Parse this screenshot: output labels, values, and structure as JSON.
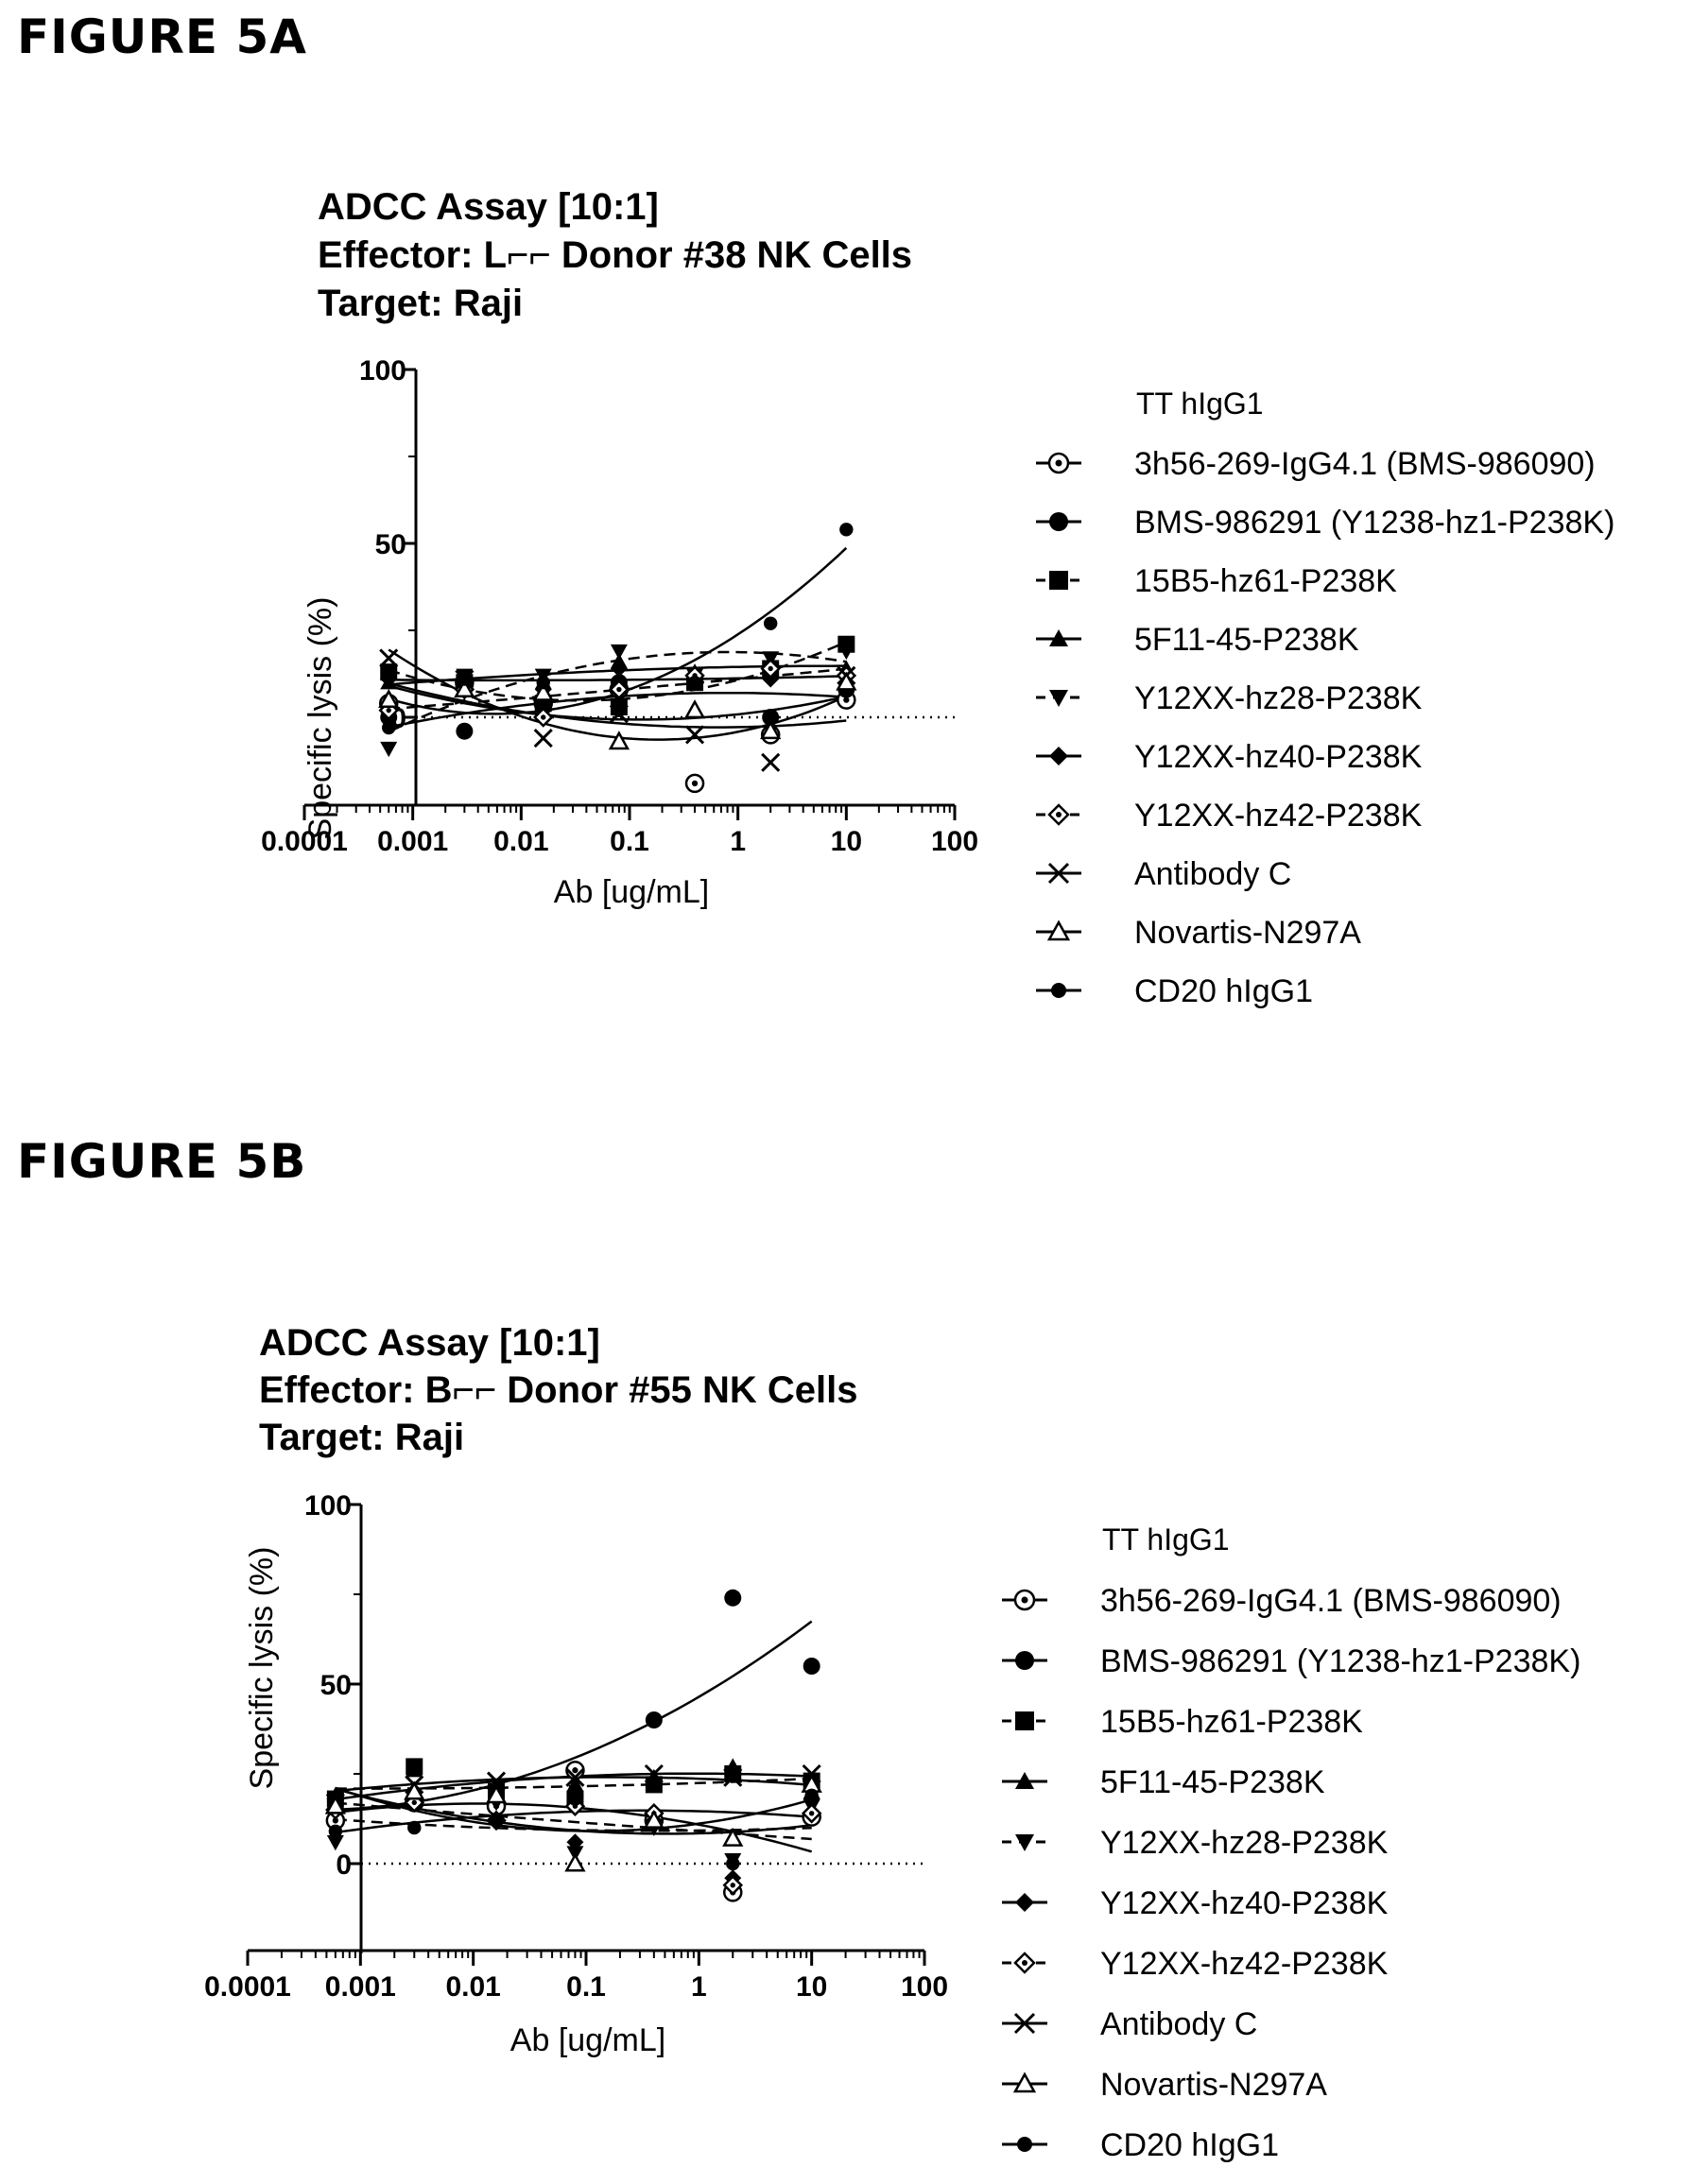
{
  "figures": [
    {
      "label": "FIGURE 5A",
      "title_lines": [
        "ADCC Assay [10:1]",
        "Effector: L⌐⌐ Donor #38 NK Cells",
        "Target: Raji"
      ],
      "legend_header": "TT hIgG1",
      "x_ticks": [
        "0.0001",
        "0.001",
        "0.01",
        "0.1",
        "1",
        "10",
        "100"
      ],
      "y_ticks": [
        "100",
        "50",
        "0"
      ],
      "ylabel": "Specific lysis (%)",
      "xlabel": "Ab [ug/mL]",
      "legend_texts": [
        "3h56-269-IgG4.1 (BMS-986090)",
        "BMS-986291 (Y1238-hz1-P238K)",
        "15B5-hz61-P238K",
        "5F11-45-P238K",
        "Y12XX-hz28-P238K",
        "Y12XX-hz40-P238K",
        "Y12XX-hz42-P238K",
        "Antibody C",
        "Novartis-N297A",
        "CD20 hIgG1"
      ]
    },
    {
      "label": "FIGURE 5B",
      "title_lines": [
        "ADCC Assay [10:1]",
        "Effector: B⌐⌐ Donor #55 NK Cells",
        "Target: Raji"
      ],
      "legend_header": "TT hIgG1",
      "x_ticks": [
        "0.0001",
        "0.001",
        "0.01",
        "0.1",
        "1",
        "10",
        "100"
      ],
      "y_ticks": [
        "100",
        "50",
        "0"
      ],
      "ylabel": "Specific lysis (%)",
      "xlabel": "Ab [ug/mL]",
      "legend_texts": [
        "3h56-269-IgG4.1 (BMS-986090)",
        "BMS-986291 (Y1238-hz1-P238K)",
        "15B5-hz61-P238K",
        "5F11-45-P238K",
        "Y12XX-hz28-P238K",
        "Y12XX-hz40-P238K",
        "Y12XX-hz42-P238K",
        "Antibody C",
        "Novartis-N297A",
        "CD20 hIgG1"
      ]
    }
  ],
  "chart_data": [
    {
      "type": "scatter",
      "title": "ADCC Assay [10:1] Effector: L⌐⌐ Donor #38 NK Cells Target: Raji",
      "xlabel": "Ab [ug/mL]",
      "ylabel": "Specific lysis (%)",
      "x_scale": "log",
      "xlim": [
        0.0001,
        100
      ],
      "ylim": [
        -25,
        100
      ],
      "grid": false,
      "legend_position": "right",
      "reference_line_y": 0,
      "x": [
        0.0006,
        0.003,
        0.016,
        0.08,
        0.4,
        2,
        10
      ],
      "series": [
        {
          "name": "3h56-269-IgG4.1 (BMS-986090)",
          "marker": "open-circle-dot",
          "values": [
            4,
            10,
            4,
            8,
            -19,
            -5,
            5
          ]
        },
        {
          "name": "BMS-986291 (Y1238-hz1-P238K)",
          "marker": "filled-circle",
          "values": [
            0,
            -4,
            3,
            10,
            11,
            0,
            8
          ]
        },
        {
          "name": "15B5-hz61-P238K",
          "marker": "filled-square",
          "values": [
            13,
            10,
            4,
            3,
            10,
            14,
            21
          ]
        },
        {
          "name": "5F11-45-P238K",
          "marker": "filled-triangle-up",
          "values": [
            10,
            11,
            10,
            16,
            13,
            16,
            14
          ]
        },
        {
          "name": "Y12XX-hz28-P238K",
          "marker": "filled-triangle-down",
          "values": [
            -9,
            12,
            12,
            19,
            12,
            17,
            19
          ]
        },
        {
          "name": "Y12XX-hz40-P238K",
          "marker": "filled-diamond",
          "values": [
            11,
            11,
            8,
            14,
            10,
            11,
            12
          ]
        },
        {
          "name": "Y12XX-hz42-P238K",
          "marker": "open-diamond-dot",
          "values": [
            2,
            8,
            0,
            8,
            12,
            14,
            12
          ]
        },
        {
          "name": "Antibody C",
          "marker": "x",
          "values": [
            17,
            11,
            -6,
            1,
            -5,
            -13,
            12
          ]
        },
        {
          "name": "Novartis-N297A",
          "marker": "open-triangle",
          "values": [
            5,
            8,
            7,
            -7,
            2,
            -4,
            10
          ]
        },
        {
          "name": "CD20 hIgG1",
          "marker": "filled-circle-small",
          "values": [
            -3,
            11,
            10,
            2,
            10,
            27,
            54
          ]
        }
      ]
    },
    {
      "type": "scatter",
      "title": "ADCC Assay [10:1] Effector: B⌐⌐ Donor #55 NK Cells Target: Raji",
      "xlabel": "Ab [ug/mL]",
      "ylabel": "Specific lysis (%)",
      "x_scale": "log",
      "xlim": [
        0.0001,
        100
      ],
      "ylim": [
        -25,
        100
      ],
      "grid": false,
      "legend_position": "right",
      "reference_line_y": 0,
      "x": [
        0.0006,
        0.003,
        0.016,
        0.08,
        0.4,
        2,
        10
      ],
      "series": [
        {
          "name": "3h56-269-IgG4.1 (BMS-986090)",
          "marker": "open-circle-dot",
          "values": [
            12,
            17,
            16,
            26,
            12,
            -8,
            13
          ]
        },
        {
          "name": "BMS-986291 (Y1238-hz1-P238K)",
          "marker": "filled-circle",
          "values": [
            18,
            17,
            20,
            19,
            40,
            74,
            55
          ]
        },
        {
          "name": "15B5-hz61-P238K",
          "marker": "filled-square",
          "values": [
            18,
            27,
            20,
            18,
            22,
            25,
            23
          ]
        },
        {
          "name": "5F11-45-P238K",
          "marker": "filled-triangle-up",
          "values": [
            19,
            26,
            21,
            22,
            24,
            27,
            20
          ]
        },
        {
          "name": "Y12XX-hz28-P238K",
          "marker": "filled-triangle-down",
          "values": [
            6,
            18,
            17,
            3,
            10,
            1,
            16
          ]
        },
        {
          "name": "Y12XX-hz40-P238K",
          "marker": "filled-diamond",
          "values": [
            17,
            18,
            18,
            6,
            12,
            -4,
            18
          ]
        },
        {
          "name": "Y12XX-hz42-P238K",
          "marker": "open-diamond-dot",
          "values": [
            15,
            17,
            12,
            16,
            14,
            -6,
            14
          ]
        },
        {
          "name": "Antibody C",
          "marker": "x",
          "values": [
            17,
            22,
            23,
            24,
            25,
            24,
            25
          ]
        },
        {
          "name": "Novartis-N297A",
          "marker": "open-triangle",
          "values": [
            16,
            20,
            19,
            0,
            12,
            7,
            22
          ]
        },
        {
          "name": "CD20 hIgG1",
          "marker": "filled-circle-small",
          "values": [
            9,
            10,
            12,
            18,
            22,
            0,
            19
          ]
        }
      ]
    }
  ]
}
